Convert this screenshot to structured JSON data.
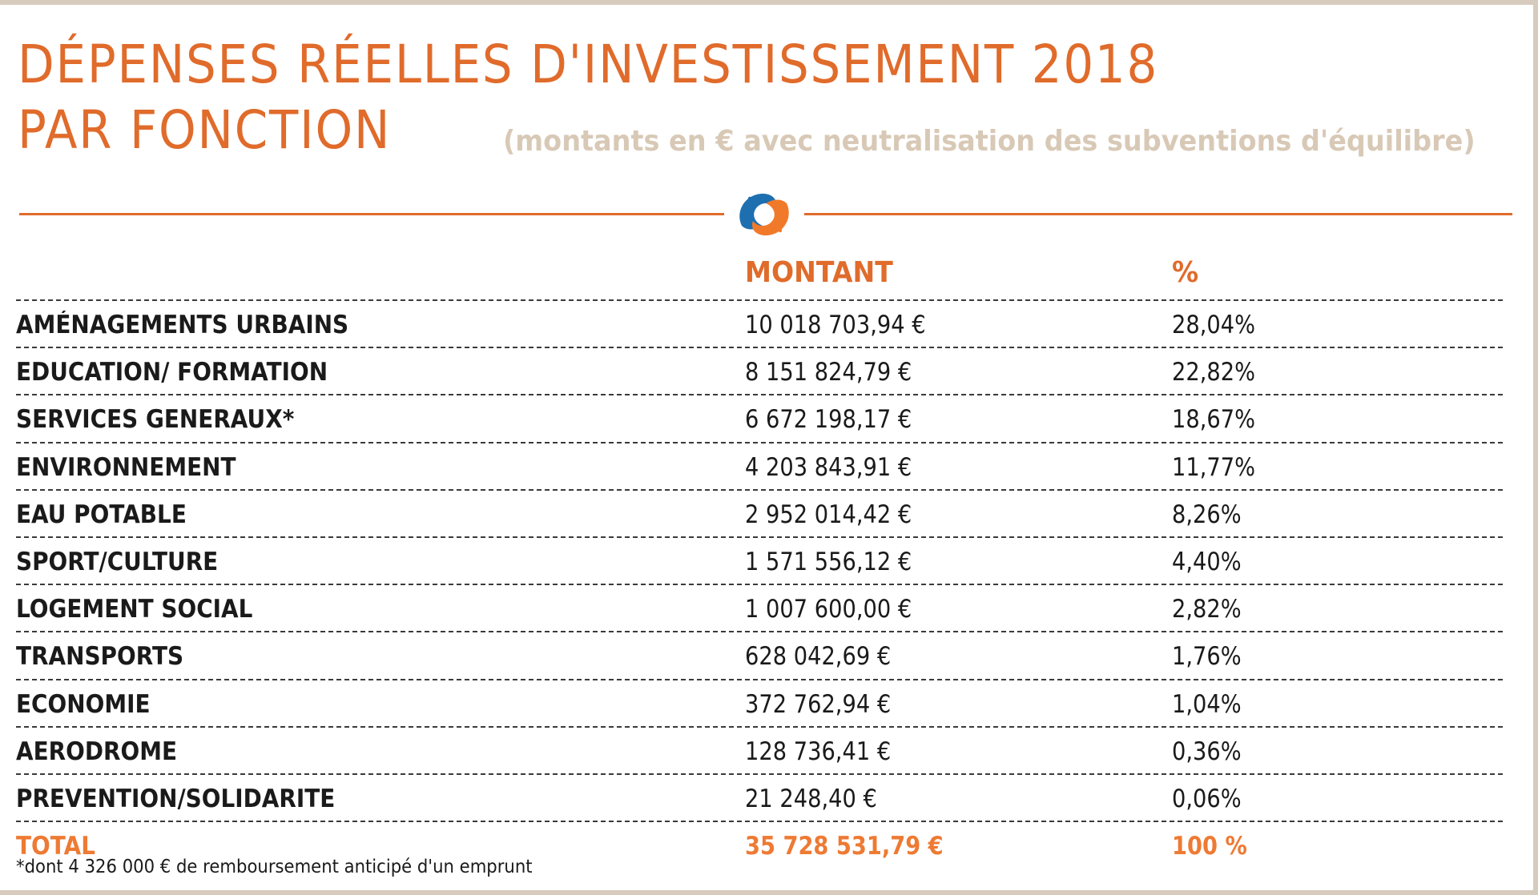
{
  "title": {
    "line1": "DÉPENSES RÉELLES D'INVESTISSEMENT 2018",
    "line2": "PAR FONCTION",
    "subtitle": "(montants en € avec neutralisation des subventions d'équilibre)"
  },
  "colors": {
    "accent": "#e06b2b",
    "subtitle": "#d8c9b6",
    "frame": "#d6cbbd",
    "logo_blue": "#1e6fb0",
    "logo_orange": "#f07a2a"
  },
  "table": {
    "headers": {
      "amount": "MONTANT",
      "percent": "%"
    },
    "rows": [
      {
        "label": "AMÉNAGEMENTS URBAINS",
        "amount": "10 018 703,94 €",
        "percent": "28,04%"
      },
      {
        "label": "EDUCATION/ FORMATION",
        "amount": "8 151 824,79 €",
        "percent": "22,82%"
      },
      {
        "label": "SERVICES GENERAUX*",
        "amount": "6 672 198,17 €",
        "percent": "18,67%"
      },
      {
        "label": "ENVIRONNEMENT",
        "amount": "4 203 843,91 €",
        "percent": "11,77%"
      },
      {
        "label": "EAU POTABLE",
        "amount": "2 952 014,42 €",
        "percent": "8,26%"
      },
      {
        "label": "SPORT/CULTURE",
        "amount": "1 571 556,12 €",
        "percent": "4,40%"
      },
      {
        "label": "LOGEMENT SOCIAL",
        "amount": "1 007 600,00 €",
        "percent": "2,82%"
      },
      {
        "label": "TRANSPORTS",
        "amount": "628 042,69 €",
        "percent": "1,76%"
      },
      {
        "label": "ECONOMIE",
        "amount": "372 762,94 €",
        "percent": "1,04%"
      },
      {
        "label": "AERODROME",
        "amount": "128 736,41 €",
        "percent": "0,36%"
      },
      {
        "label": "PREVENTION/SOLIDARITE",
        "amount": "21 248,40 €",
        "percent": "0,06%"
      }
    ],
    "total": {
      "label": "TOTAL",
      "amount": "35 728 531,79 €",
      "percent": "100 %"
    }
  },
  "footnote": "*dont 4 326 000 € de remboursement anticipé d'un emprunt"
}
